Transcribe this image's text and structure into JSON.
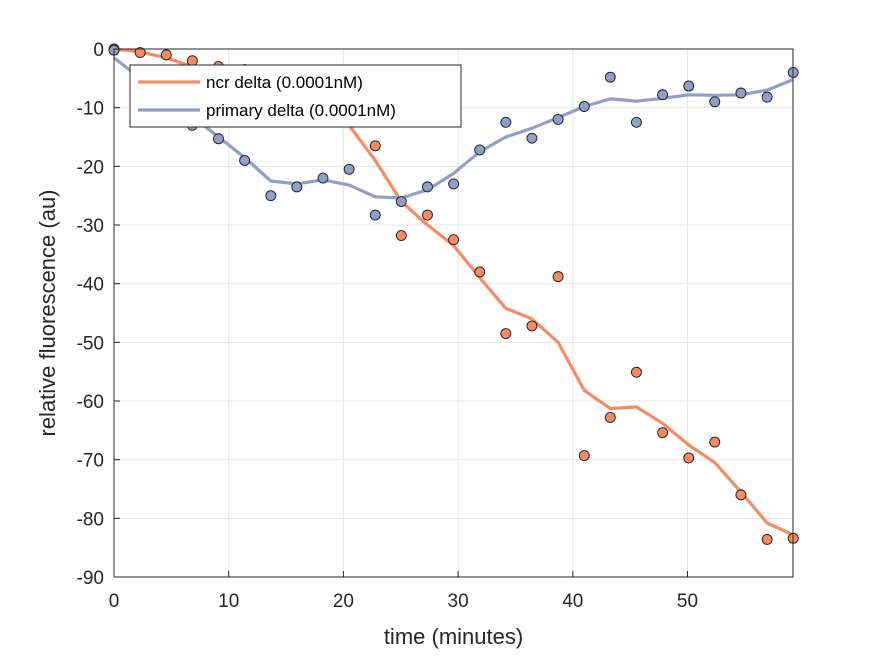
{
  "chart_data": {
    "type": "line",
    "title": "",
    "xlabel": "time (minutes)",
    "ylabel": "relative fluorescence (au)",
    "xlim": [
      0,
      59.2
    ],
    "ylim": [
      -90,
      0
    ],
    "xticks": [
      0,
      10,
      20,
      30,
      40,
      50
    ],
    "yticks": [
      0,
      -10,
      -20,
      -30,
      -40,
      -50,
      -60,
      -70,
      -80,
      -90
    ],
    "grid": true,
    "legend_position": "top-left",
    "series": [
      {
        "name": "ncr delta (0.0001nM)",
        "color": "#f58b63",
        "points_x": [
          0,
          2.28,
          4.56,
          6.83,
          9.11,
          11.39,
          13.67,
          15.94,
          18.22,
          20.5,
          22.78,
          25.05,
          27.33,
          29.61,
          31.89,
          34.16,
          36.44,
          38.72,
          41.0,
          43.27,
          45.55,
          47.83,
          50.11,
          52.38,
          54.66,
          56.94,
          59.22
        ],
        "points_y": [
          0,
          -0.6,
          -1.0,
          -2,
          -3,
          -3.5,
          -4,
          -5,
          -8,
          -12,
          -16.5,
          -31.8,
          -28.3,
          -32.5,
          -38,
          -48.5,
          -47.2,
          -38.8,
          -69.3,
          -62.8,
          -55.1,
          -65.4,
          -69.7,
          -67,
          -76,
          -83.6,
          -83.4
        ],
        "fit_x": [
          0,
          2.28,
          4.56,
          6.83,
          9.11,
          11.39,
          13.67,
          15.94,
          18.22,
          20.5,
          22.78,
          25.05,
          27.33,
          29.61,
          31.89,
          34.16,
          36.44,
          38.72,
          41.0,
          43.27,
          45.55,
          47.83,
          50.11,
          52.38,
          54.66,
          56.94,
          59.22
        ],
        "fit_y": [
          0,
          -0.5,
          -1.5,
          -3,
          -4,
          -5,
          -6,
          -8,
          -10,
          -13,
          -19,
          -26,
          -30,
          -33.5,
          -39,
          -44.2,
          -46,
          -50,
          -58.2,
          -61.3,
          -61,
          -63.8,
          -67.5,
          -70.5,
          -75.5,
          -80.8,
          -82.8
        ]
      },
      {
        "name": "primary delta (0.0001nM)",
        "color": "#8ea0ca",
        "points_x": [
          0,
          2.28,
          4.56,
          6.83,
          9.11,
          11.39,
          13.67,
          15.94,
          18.22,
          20.5,
          22.78,
          25.05,
          27.33,
          29.61,
          31.89,
          34.16,
          36.44,
          38.72,
          41.0,
          43.27,
          45.55,
          47.83,
          50.11,
          52.38,
          54.66,
          56.94,
          59.22
        ],
        "points_y": [
          -0.2,
          -5,
          -9,
          -13,
          -15.3,
          -19,
          -25,
          -23.5,
          -22,
          -20.5,
          -28.3,
          -26,
          -23.5,
          -23,
          -17.2,
          -12.5,
          -15.2,
          -12,
          -9.8,
          -4.8,
          -12.5,
          -7.8,
          -6.3,
          -9,
          -7.5,
          -8.2,
          -4
        ],
        "fit_x": [
          0,
          2.28,
          4.56,
          6.83,
          9.11,
          11.39,
          13.67,
          15.94,
          18.22,
          20.5,
          22.78,
          25.05,
          27.33,
          29.61,
          31.89,
          34.16,
          36.44,
          38.72,
          41.0,
          43.27,
          45.55,
          47.83,
          50.11,
          52.38,
          54.66,
          56.94,
          59.22
        ],
        "fit_y": [
          -1.5,
          -5,
          -8.5,
          -11.5,
          -15,
          -18.5,
          -22.5,
          -23,
          -22.3,
          -23.2,
          -25.2,
          -25.4,
          -24,
          -21.2,
          -17.5,
          -15,
          -13.5,
          -11.7,
          -9.8,
          -8.5,
          -8.9,
          -8.4,
          -7.8,
          -7.9,
          -7.8,
          -7,
          -5.2
        ]
      }
    ]
  }
}
